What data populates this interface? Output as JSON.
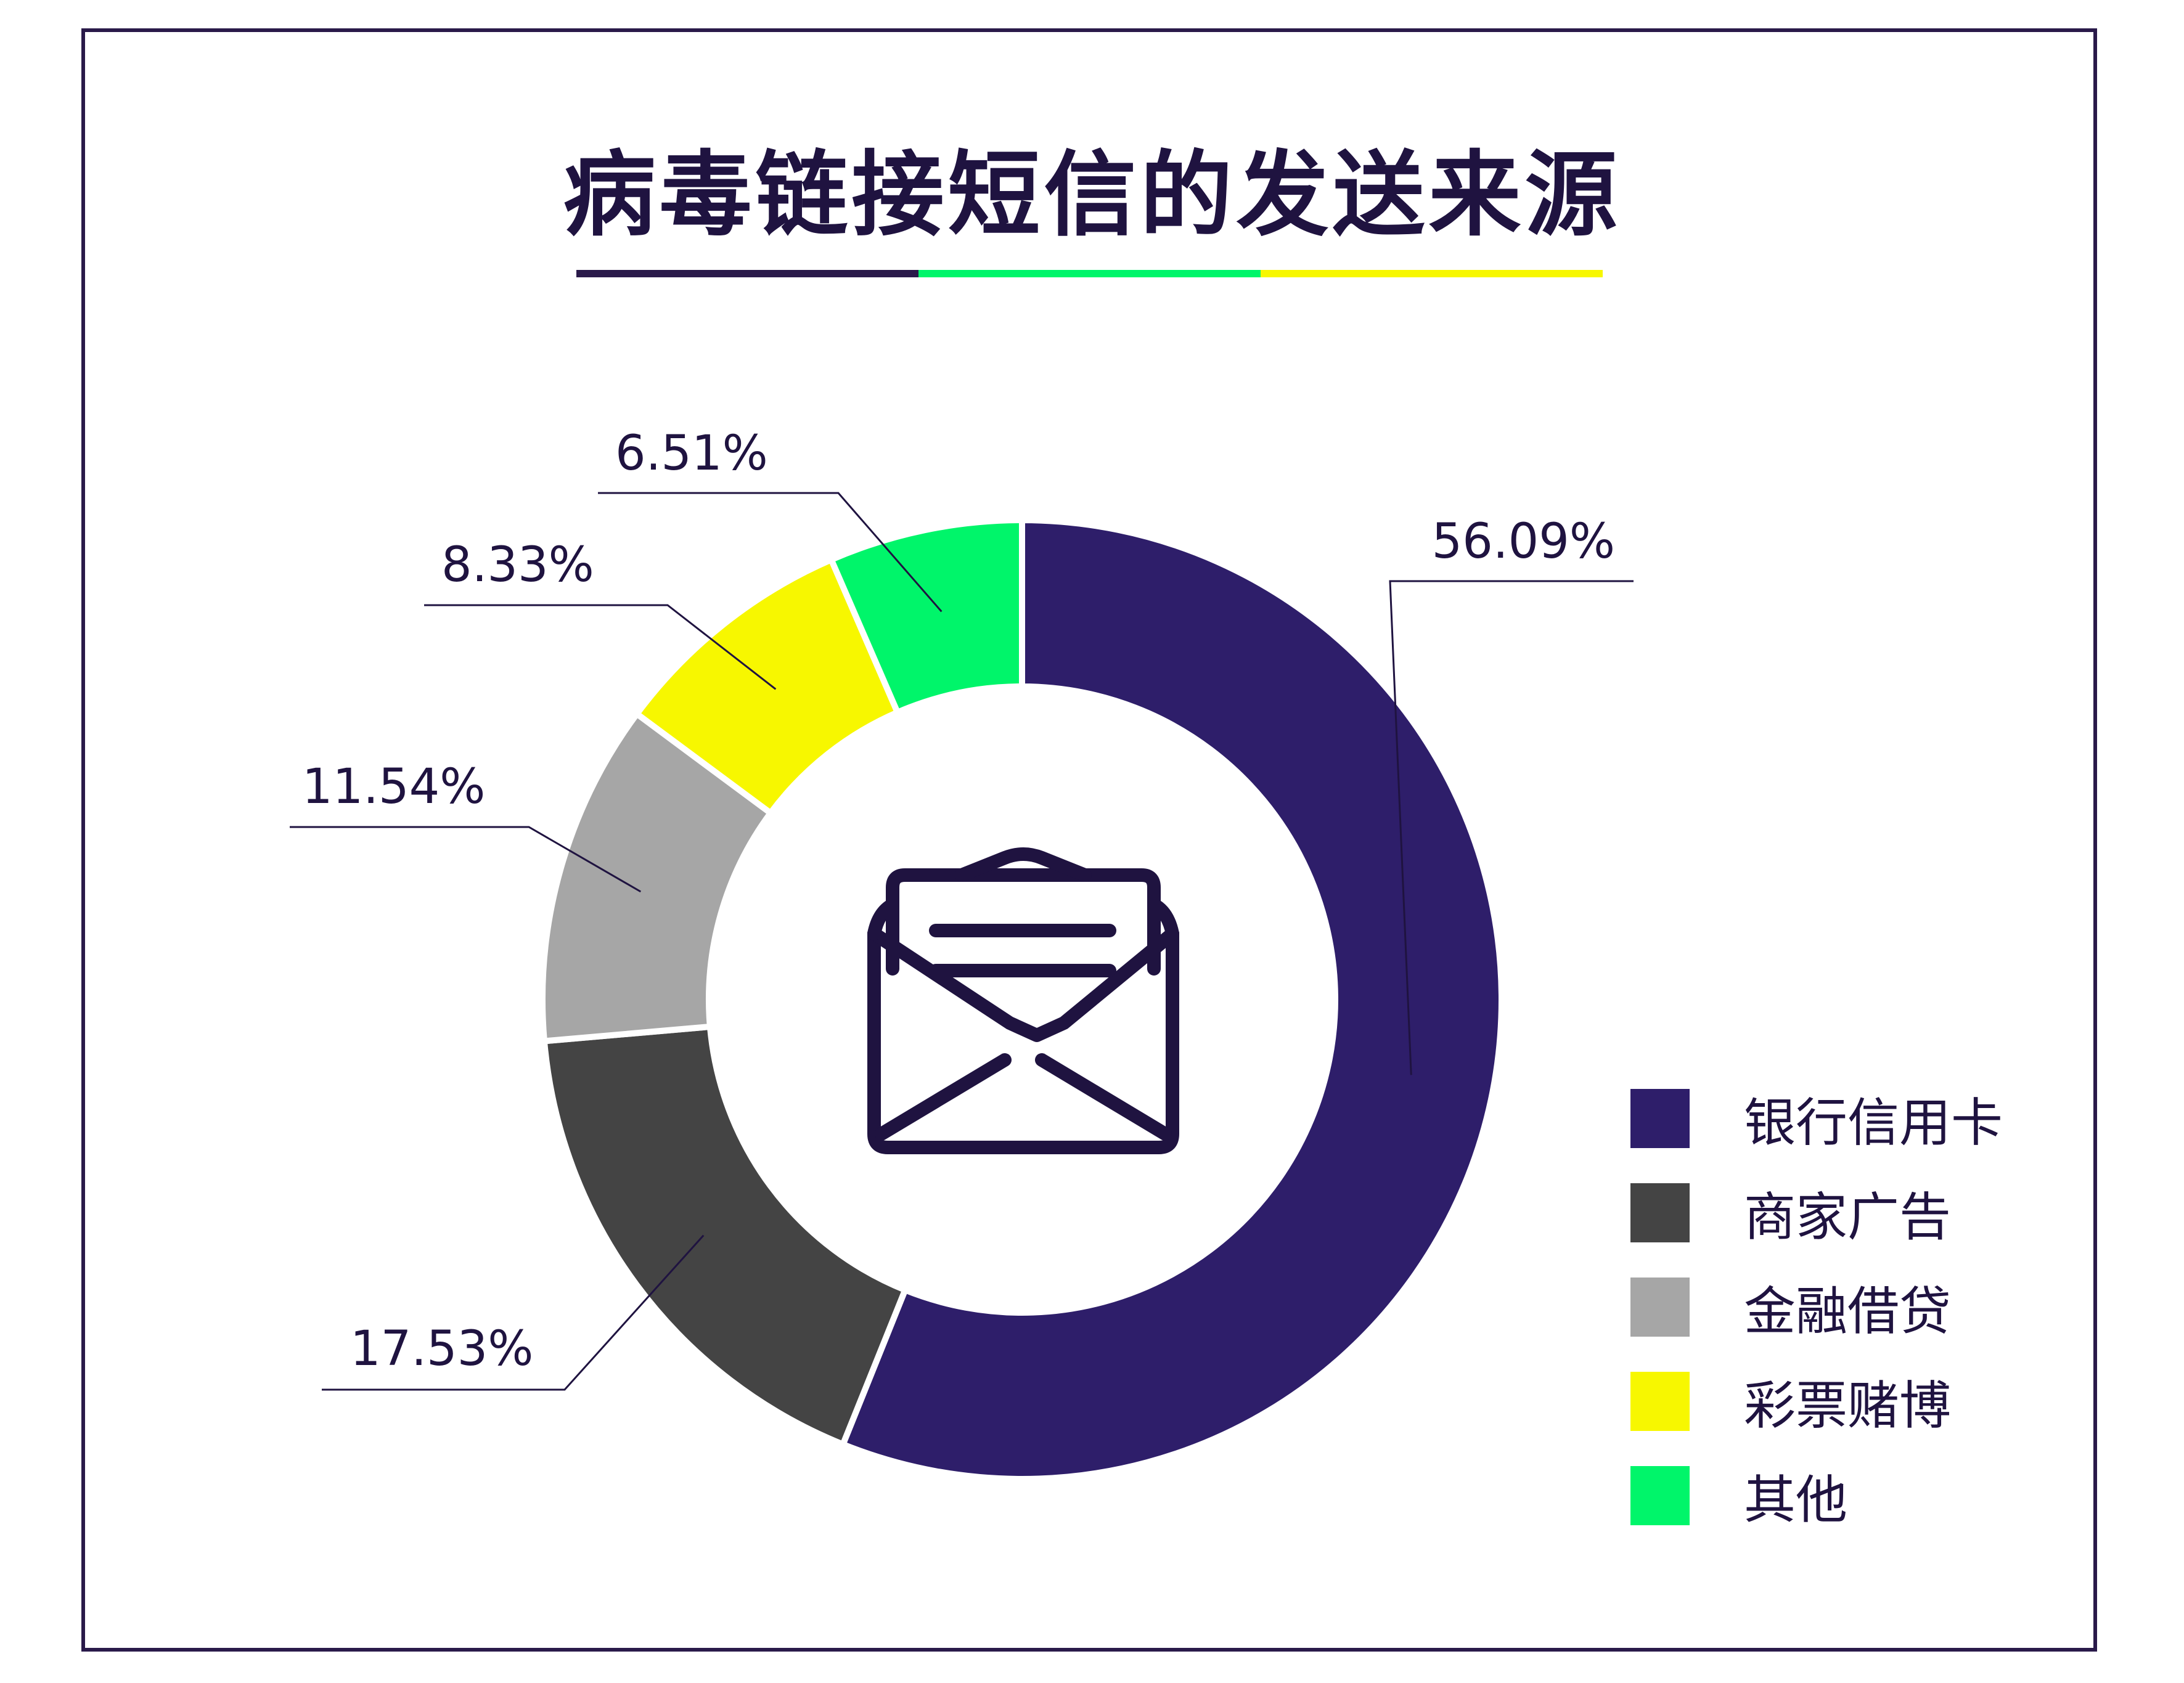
{
  "chart_data": {
    "type": "pie",
    "title": "病毒链接短信的发送来源",
    "donut": true,
    "center_icon": "open-envelope-icon",
    "legend_position": "right-bottom",
    "categories": [
      "银行信用卡",
      "商家广告",
      "金融借贷",
      "彩票赌博",
      "其他"
    ],
    "values": [
      56.09,
      17.53,
      11.54,
      8.33,
      6.51
    ],
    "value_labels": [
      "56.09%",
      "17.53%",
      "11.54%",
      "8.33%",
      "6.51%"
    ],
    "colors": [
      "#2e1e6a",
      "#444444",
      "#a6a6a6",
      "#f7f700",
      "#00f56a"
    ]
  },
  "title_bar_colors": [
    "#2a1a4a",
    "#00f56a",
    "#f7f700"
  ],
  "frame_color": "#2a1a4a"
}
